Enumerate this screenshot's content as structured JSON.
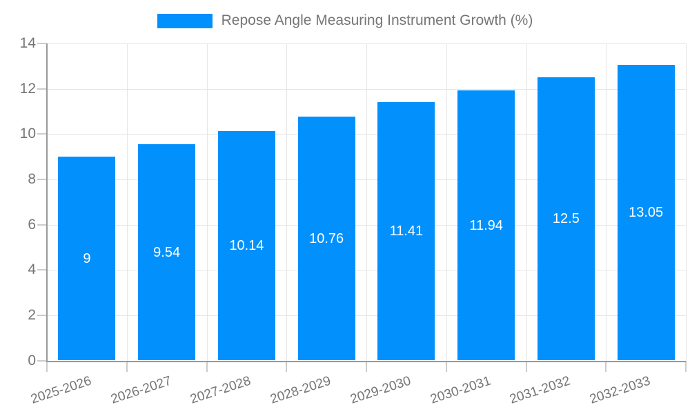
{
  "chart_data": {
    "type": "bar",
    "title": "Repose Angle Measuring Instrument Growth (%)",
    "legend": [
      "Repose Angle Measuring Instrument Growth (%)"
    ],
    "legend_position": "top-center",
    "categories": [
      "2025-2026",
      "2026-2027",
      "2027-2028",
      "2028-2029",
      "2029-2030",
      "2030-2031",
      "2031-2032",
      "2032-2033"
    ],
    "values": [
      9,
      9.54,
      10.14,
      10.76,
      11.41,
      11.94,
      12.5,
      13.05
    ],
    "xlabel": "",
    "ylabel": "",
    "ylim": [
      0,
      14
    ],
    "yticks": [
      0,
      2,
      4,
      6,
      8,
      10,
      12,
      14
    ],
    "grid": true,
    "value_labels": "inside-center",
    "x_label_rotation_deg": -18,
    "colors": {
      "bar": "#0291fc",
      "grid": "#e6e6e6",
      "axis": "#999999",
      "tick": "#cccccc",
      "text": "#757575",
      "value_label": "#ffffff"
    }
  }
}
